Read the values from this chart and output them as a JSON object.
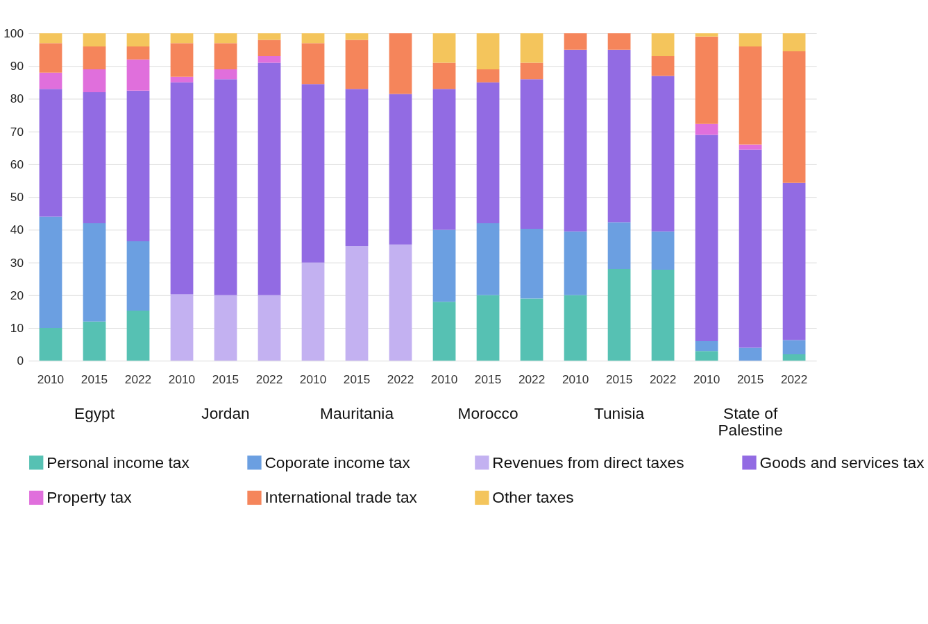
{
  "chart_data": {
    "type": "bar",
    "stacked": true,
    "categories": [
      "2010",
      "2015",
      "2022",
      "2010",
      "2015",
      "2022",
      "2010",
      "2015",
      "2022",
      "2010",
      "2015",
      "2022",
      "2010",
      "2015",
      "2022",
      "2010",
      "2015",
      "2022"
    ],
    "series": [
      {
        "name": "Personal income tax",
        "color": "#56c1b3",
        "values": [
          10,
          12,
          15.3,
          null,
          null,
          null,
          null,
          null,
          null,
          18,
          20,
          19,
          20,
          28,
          27.8,
          3,
          0,
          2
        ]
      },
      {
        "name": "Coporate income tax",
        "color": "#6b9fe1",
        "values": [
          34,
          30,
          21.2,
          null,
          null,
          null,
          null,
          null,
          null,
          22,
          22,
          21.3,
          19.5,
          14.3,
          11.7,
          3,
          4,
          4.3
        ]
      },
      {
        "name": "Revenues from direct taxes",
        "color": "#c3b1f1",
        "values": [
          null,
          null,
          null,
          20.3,
          20,
          20,
          30,
          35,
          35.5,
          null,
          null,
          null,
          null,
          null,
          null,
          null,
          null,
          null
        ]
      },
      {
        "name": "Goods and services tax",
        "color": "#926be3",
        "values": [
          39,
          40,
          46,
          64.7,
          66,
          71,
          54.5,
          48,
          46,
          43,
          43,
          45.7,
          55.5,
          52.7,
          47.5,
          63,
          60.5,
          48
        ]
      },
      {
        "name": "Property tax",
        "color": "#e06fdc",
        "values": [
          5,
          7,
          9.5,
          1.7,
          3,
          2,
          null,
          null,
          null,
          null,
          null,
          null,
          null,
          null,
          null,
          3.3,
          1.5,
          null
        ]
      },
      {
        "name": "International trade tax",
        "color": "#f5855b",
        "values": [
          9,
          7,
          4,
          10.3,
          8,
          5,
          12.5,
          15,
          18.5,
          8,
          4,
          5,
          5,
          5,
          6,
          26.7,
          30,
          40.2
        ]
      },
      {
        "name": "Other taxes",
        "color": "#f4c55c",
        "values": [
          3,
          4,
          4,
          3,
          3,
          2,
          3,
          2,
          null,
          9,
          11,
          9,
          null,
          null,
          7,
          1,
          4,
          5.5
        ]
      }
    ],
    "annotations": [
      "Egypt",
      "Jordan",
      "Mauritania",
      "Morocco",
      "Tunisia",
      "State of\nPalestine"
    ],
    "ylim": [
      0,
      100
    ],
    "yticks": [
      0,
      10,
      20,
      30,
      40,
      50,
      60,
      70,
      80,
      90,
      100
    ],
    "grid": "y",
    "legend": "bottom"
  }
}
